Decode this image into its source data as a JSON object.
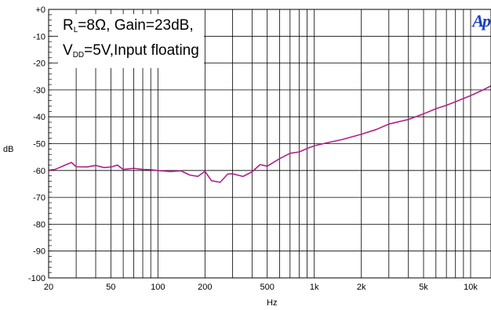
{
  "chart_data": {
    "type": "line",
    "title": "",
    "xlabel": "Hz",
    "ylabel": "dB",
    "x_scale": "log",
    "xlim": [
      20,
      13500
    ],
    "ylim": [
      -100,
      0
    ],
    "grid": true,
    "x_tick_values": [
      20,
      30,
      40,
      50,
      60,
      70,
      80,
      90,
      100,
      200,
      300,
      400,
      500,
      600,
      700,
      800,
      900,
      1000,
      2000,
      3000,
      4000,
      5000,
      6000,
      7000,
      8000,
      9000,
      10000
    ],
    "x_tick_labels": [
      {
        "value": 20,
        "label": "20"
      },
      {
        "value": 50,
        "label": "50"
      },
      {
        "value": 100,
        "label": "100"
      },
      {
        "value": 200,
        "label": "200"
      },
      {
        "value": 500,
        "label": "500"
      },
      {
        "value": 1000,
        "label": "1k"
      },
      {
        "value": 2000,
        "label": "2k"
      },
      {
        "value": 5000,
        "label": "5k"
      },
      {
        "value": 10000,
        "label": "10k"
      }
    ],
    "y_tick_labels": [
      {
        "value": 0,
        "label": "+0"
      },
      {
        "value": -10,
        "label": "-10"
      },
      {
        "value": -20,
        "label": "-20"
      },
      {
        "value": -30,
        "label": "-30"
      },
      {
        "value": -40,
        "label": "-40"
      },
      {
        "value": -50,
        "label": "-50"
      },
      {
        "value": -60,
        "label": "-60"
      },
      {
        "value": -70,
        "label": "-70"
      },
      {
        "value": -80,
        "label": "-80"
      },
      {
        "value": -90,
        "label": "-90"
      },
      {
        "value": -100,
        "label": "-100"
      }
    ],
    "series": [
      {
        "color": "#b0208a",
        "x": [
          20,
          22,
          25,
          28,
          30,
          35,
          40,
          45,
          50,
          55,
          60,
          70,
          80,
          90,
          100,
          120,
          140,
          160,
          180,
          200,
          220,
          250,
          280,
          300,
          350,
          400,
          450,
          500,
          600,
          700,
          800,
          900,
          1000,
          1200,
          1500,
          2000,
          2500,
          3000,
          4000,
          5000,
          6000,
          7000,
          8000,
          10000,
          12000,
          13500
        ],
        "y": [
          -59.9,
          -59.6,
          -58.2,
          -57.0,
          -58.6,
          -58.7,
          -58.1,
          -58.9,
          -58.7,
          -58.0,
          -59.6,
          -59.2,
          -59.6,
          -59.7,
          -60.0,
          -60.4,
          -60.1,
          -61.7,
          -62.2,
          -60.3,
          -63.8,
          -64.4,
          -61.3,
          -61.2,
          -62.2,
          -60.5,
          -57.8,
          -58.4,
          -55.6,
          -53.6,
          -53.1,
          -51.8,
          -50.8,
          -49.7,
          -48.5,
          -46.5,
          -44.7,
          -42.7,
          -41.0,
          -38.9,
          -37.0,
          -35.7,
          -34.4,
          -32.1,
          -30.0,
          -28.5
        ]
      }
    ],
    "annotation": {
      "line1_main": "R",
      "line1_sub": "L",
      "line1_rest": "=8Ω, Gain=23dB,",
      "line2_main": "V",
      "line2_sub": "DD",
      "line2_rest": "=5V,Input floating"
    },
    "logo_text": "Ap"
  }
}
